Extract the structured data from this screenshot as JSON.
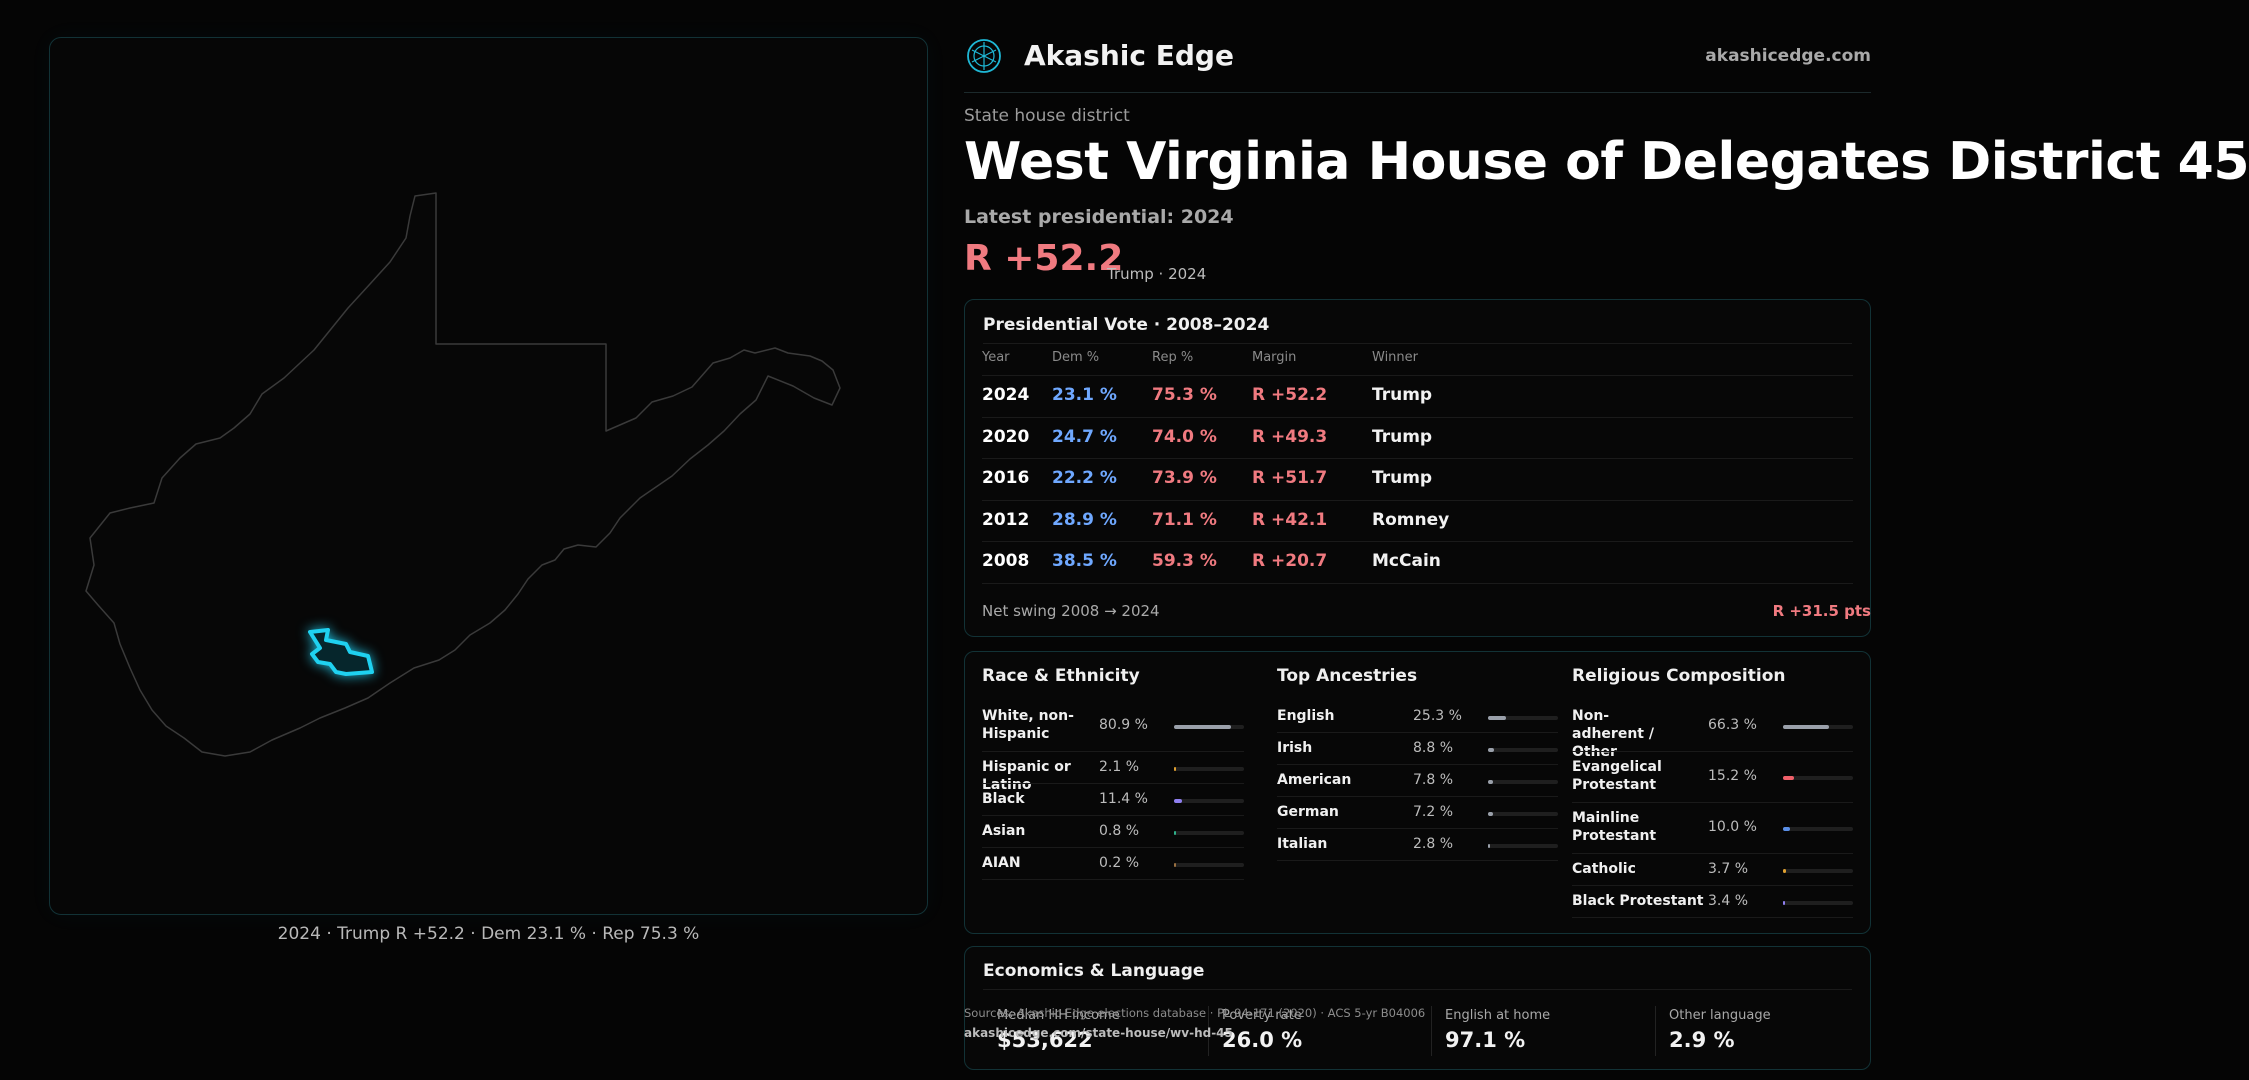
{
  "brand": {
    "name": "Akashic Edge",
    "url": "akashicedge.com",
    "logo_icon": "akashic-globe-icon",
    "accent": "#1fb8d6"
  },
  "header": {
    "kicker": "State house district",
    "title": "West Virginia House of Delegates District 45",
    "latest_label": "Latest presidential: 2024",
    "margin": "R +52.2",
    "margin_sub": "Trump · 2024"
  },
  "map": {
    "caption": "2024 · Trump R +52.2 · Dem 23.1 % · Rep 75.3 %",
    "district_color": "#1fd1f0"
  },
  "presidential": {
    "title": "Presidential Vote · 2008–2024",
    "columns": [
      "Year",
      "Dem %",
      "Rep %",
      "Margin",
      "Winner"
    ],
    "rows": [
      {
        "year": "2024",
        "dem": "23.1 %",
        "rep": "75.3 %",
        "margin": "R +52.2",
        "winner": "Trump"
      },
      {
        "year": "2020",
        "dem": "24.7 %",
        "rep": "74.0 %",
        "margin": "R +49.3",
        "winner": "Trump"
      },
      {
        "year": "2016",
        "dem": "22.2 %",
        "rep": "73.9 %",
        "margin": "R +51.7",
        "winner": "Trump"
      },
      {
        "year": "2012",
        "dem": "28.9 %",
        "rep": "71.1 %",
        "margin": "R +42.1",
        "winner": "Romney"
      },
      {
        "year": "2008",
        "dem": "38.5 %",
        "rep": "59.3 %",
        "margin": "R +20.7",
        "winner": "McCain"
      }
    ],
    "swing_label": "Net swing 2008 → 2024",
    "swing_value": "R +31.5 pts"
  },
  "race": {
    "title": "Race & Ethnicity",
    "items": [
      {
        "label": "White, non-Hispanic",
        "value": "80.9 %",
        "share": 0.809,
        "color": "#9aa0aa"
      },
      {
        "label": "Hispanic or Latino",
        "value": "2.1 %",
        "share": 0.021,
        "color": "#e0a030"
      },
      {
        "label": "Black",
        "value": "11.4 %",
        "share": 0.114,
        "color": "#8f7ff0"
      },
      {
        "label": "Asian",
        "value": "0.8 %",
        "share": 0.008,
        "color": "#2fb08a"
      },
      {
        "label": "AIAN",
        "value": "0.2 %",
        "share": 0.002,
        "color": "#9a7040"
      }
    ]
  },
  "ancestry": {
    "title": "Top Ancestries",
    "items": [
      {
        "label": "English",
        "value": "25.3 %",
        "share": 0.253,
        "color": "#9aa0aa"
      },
      {
        "label": "Irish",
        "value": "8.8 %",
        "share": 0.088,
        "color": "#9aa0aa"
      },
      {
        "label": "American",
        "value": "7.8 %",
        "share": 0.078,
        "color": "#9aa0aa"
      },
      {
        "label": "German",
        "value": "7.2 %",
        "share": 0.072,
        "color": "#9aa0aa"
      },
      {
        "label": "Italian",
        "value": "2.8 %",
        "share": 0.028,
        "color": "#9aa0aa"
      }
    ]
  },
  "religion": {
    "title": "Religious Composition",
    "items": [
      {
        "label": "Non-adherent / Other",
        "value": "66.3 %",
        "share": 0.663,
        "color": "#9aa0aa"
      },
      {
        "label": "Evangelical Protestant",
        "value": "15.2 %",
        "share": 0.152,
        "color": "#f0606a"
      },
      {
        "label": "Mainline Protestant",
        "value": "10.0 %",
        "share": 0.1,
        "color": "#5a8fe8"
      },
      {
        "label": "Catholic",
        "value": "3.7 %",
        "share": 0.037,
        "color": "#e0a030"
      },
      {
        "label": "Black Protestant",
        "value": "3.4 %",
        "share": 0.034,
        "color": "#8f7ff0"
      }
    ]
  },
  "economics": {
    "title": "Economics & Language",
    "items": [
      {
        "label": "Median HH income",
        "value": "$53,622"
      },
      {
        "label": "Poverty rate",
        "value": "26.0 %"
      },
      {
        "label": "English at home",
        "value": "97.1 %"
      },
      {
        "label": "Other language",
        "value": "2.9 %"
      }
    ]
  },
  "footer": {
    "sources": "Sources: Akashic Edge elections database · PL 94-171 (2020) · ACS 5-yr B04006",
    "url": "akashicedge.com/state-house/wv-hd-45"
  }
}
